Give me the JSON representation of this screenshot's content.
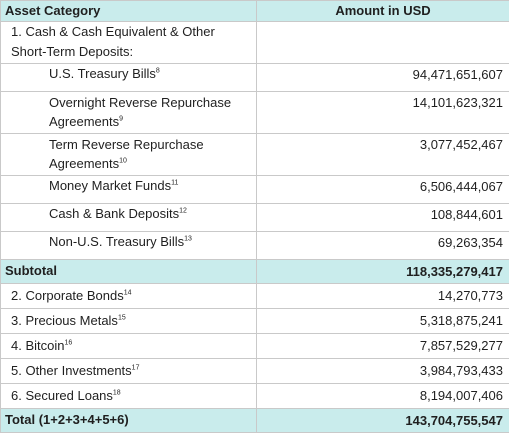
{
  "header": {
    "category": "Asset Category",
    "amount": "Amount in USD"
  },
  "group1": {
    "label": "1. Cash & Cash Equivalent & Other Short-Term Deposits:",
    "items": [
      {
        "label": "U.S. Treasury Bills",
        "sup": "8",
        "amount": "94,471,651,607"
      },
      {
        "label": "Overnight Reverse Repurchase Agreements",
        "sup": "9",
        "amount": "14,101,623,321"
      },
      {
        "label": "Term Reverse Repurchase Agreements",
        "sup": "10",
        "amount": "3,077,452,467"
      },
      {
        "label": "Money Market Funds",
        "sup": "11",
        "amount": "6,506,444,067"
      },
      {
        "label": "Cash & Bank Deposits",
        "sup": "12",
        "amount": "108,844,601"
      },
      {
        "label": "Non-U.S. Treasury Bills",
        "sup": "13",
        "amount": "69,263,354"
      }
    ]
  },
  "subtotal": {
    "label": "Subtotal",
    "amount": "118,335,279,417"
  },
  "others": [
    {
      "label": "2. Corporate Bonds",
      "sup": "14",
      "amount": "14,270,773"
    },
    {
      "label": "3. Precious Metals",
      "sup": "15",
      "amount": "5,318,875,241"
    },
    {
      "label": "4. Bitcoin",
      "sup": "16",
      "amount": "7,857,529,277"
    },
    {
      "label": "5. Other Investments",
      "sup": "17",
      "amount": "3,984,793,433"
    },
    {
      "label": "6. Secured Loans",
      "sup": "18",
      "amount": "8,194,007,406"
    }
  ],
  "total": {
    "label": "Total (1+2+3+4+5+6)",
    "amount": "143,704,755,547"
  },
  "colors": {
    "header_bg": "#c9ecec",
    "border": "#c9c9c9",
    "text": "#1f1f1f"
  }
}
